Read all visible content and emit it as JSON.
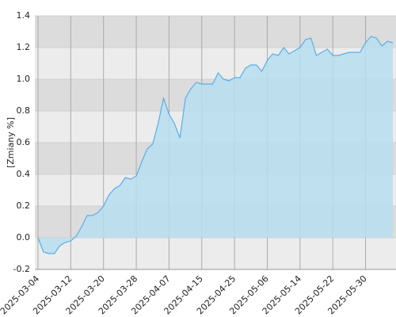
{
  "chart_data": {
    "type": "area",
    "y_label": "[Zmiany %]",
    "categories": [
      "2025-03-04",
      null,
      null,
      null,
      null,
      null,
      "2025-03-12",
      null,
      null,
      null,
      null,
      null,
      "2025-03-20",
      null,
      null,
      null,
      null,
      null,
      "2025-03-28",
      null,
      null,
      null,
      null,
      null,
      "2025-04-07",
      null,
      null,
      null,
      null,
      null,
      "2025-04-15",
      null,
      null,
      null,
      null,
      null,
      "2025-04-25",
      null,
      null,
      null,
      null,
      null,
      "2025-05-06",
      null,
      null,
      null,
      null,
      null,
      "2025-05-14",
      null,
      null,
      null,
      null,
      null,
      "2025-05-22",
      null,
      null,
      null,
      null,
      null,
      "2025-05-30",
      null,
      null,
      null,
      null,
      null
    ],
    "values": [
      0.0,
      -0.09,
      -0.1,
      -0.1,
      -0.05,
      -0.03,
      -0.02,
      0.01,
      0.07,
      0.14,
      0.14,
      0.16,
      0.2,
      0.27,
      0.31,
      0.33,
      0.38,
      0.37,
      0.39,
      0.48,
      0.56,
      0.59,
      0.72,
      0.88,
      0.78,
      0.72,
      0.63,
      0.88,
      0.94,
      0.98,
      0.97,
      0.97,
      0.97,
      1.04,
      1.0,
      0.99,
      1.01,
      1.01,
      1.07,
      1.09,
      1.09,
      1.05,
      1.12,
      1.16,
      1.15,
      1.2,
      1.16,
      1.18,
      1.2,
      1.25,
      1.26,
      1.15,
      1.17,
      1.19,
      1.15,
      1.15,
      1.16,
      1.17,
      1.17,
      1.17,
      1.23,
      1.27,
      1.26,
      1.21,
      1.24,
      1.23
    ],
    "color": "#5aaee8",
    "fill": "#b7def0",
    "ylim": [
      -0.2,
      1.4
    ],
    "yticks": [
      -0.2,
      {
        "value": 0,
        "label": "0.0"
      },
      0.2,
      0.4,
      0.6,
      0.8,
      {
        "value": 1,
        "label": "1.0"
      },
      1.2,
      1.4
    ],
    "grid": true
  }
}
